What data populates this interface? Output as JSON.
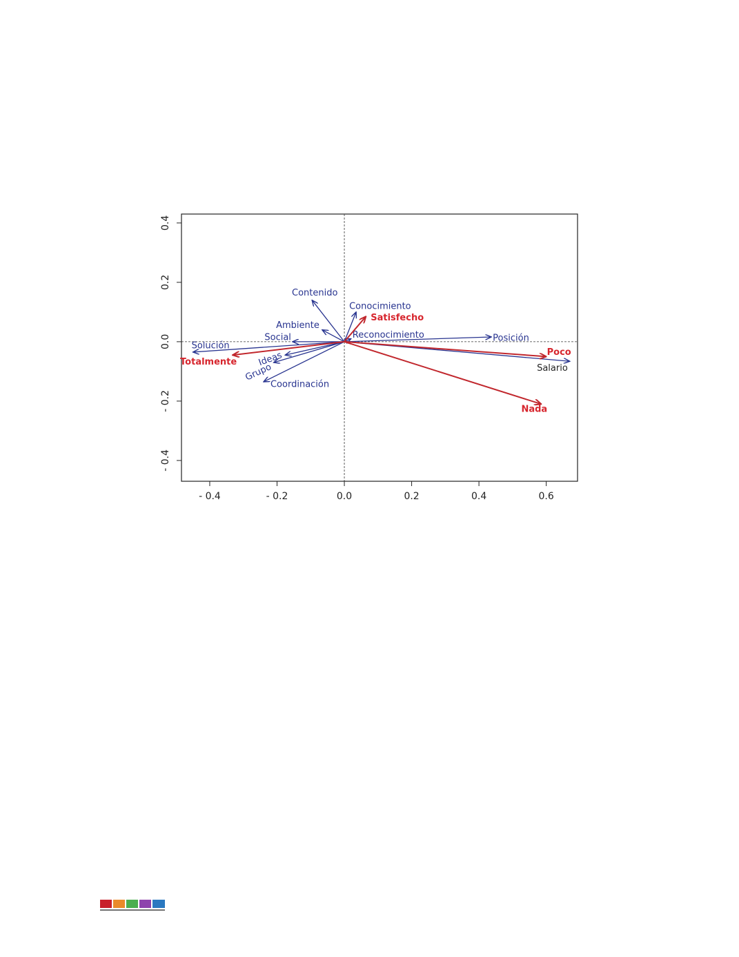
{
  "chart_data": {
    "type": "biplot",
    "xlim": [
      -0.484,
      0.693
    ],
    "ylim": [
      -0.47,
      0.43
    ],
    "xticks": [
      {
        "value": -0.4,
        "label": "- 0.4"
      },
      {
        "value": -0.2,
        "label": "- 0.2"
      },
      {
        "value": 0,
        "label": "0.0"
      },
      0.2,
      0.4,
      0.6
    ],
    "yticks": [
      {
        "value": -0.4,
        "label": "- 0.4"
      },
      {
        "value": -0.2,
        "label": "- 0.2"
      },
      {
        "value": 0,
        "label": "0.0"
      },
      0.2,
      0.4
    ],
    "series": [
      {
        "color": "#27338f",
        "label_color": "#27338f",
        "bold": false,
        "points": [
          {
            "label": "Contenido",
            "x": -0.096,
            "y": 0.14
          },
          {
            "label": "Conocimiento",
            "x": 0.035,
            "y": 0.1
          },
          {
            "label": "Ambiente",
            "x": -0.066,
            "y": 0.04
          },
          {
            "label": "Social",
            "x": -0.154,
            "y": 0.0
          },
          {
            "label": "Reconocimiento",
            "x": 0.02,
            "y": 0.01
          },
          {
            "label": "Posición",
            "x": 0.437,
            "y": 0.016
          },
          {
            "label": "Solución",
            "x": -0.45,
            "y": -0.035
          },
          {
            "label": "Ideas",
            "x": -0.176,
            "y": -0.045
          },
          {
            "label": "Grupo",
            "x": -0.21,
            "y": -0.07
          },
          {
            "label": "Coordinación",
            "x": -0.24,
            "y": -0.135
          },
          {
            "label": "Salario",
            "x": 0.67,
            "y": -0.066,
            "label_color": "#222222"
          }
        ]
      },
      {
        "color": "#c1272d",
        "label_color": "#d7262e",
        "bold": true,
        "points": [
          {
            "label": "Satisfecho",
            "x": 0.064,
            "y": 0.085
          },
          {
            "label": "Poco",
            "x": 0.6,
            "y": -0.05
          },
          {
            "label": "Nada",
            "x": 0.585,
            "y": -0.21
          },
          {
            "label": "Totalmente",
            "x": -0.332,
            "y": -0.045
          }
        ]
      }
    ]
  }
}
